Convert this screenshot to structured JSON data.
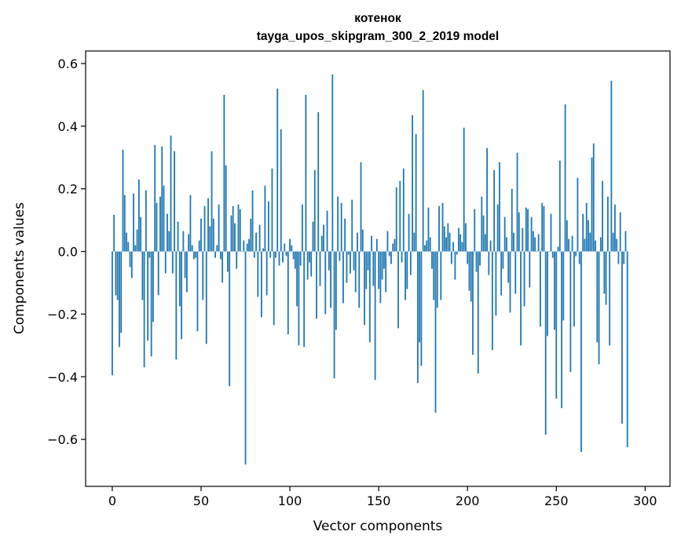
{
  "chart_data": {
    "type": "bar",
    "title": "котенок",
    "subtitle": "tayga_upos_skipgram_300_2_2019 model",
    "xlabel": "Vector components",
    "ylabel": "Components values",
    "xlim": [
      -15,
      314
    ],
    "ylim": [
      -0.75,
      0.64
    ],
    "xticks": [
      0,
      50,
      100,
      150,
      200,
      250,
      300
    ],
    "xtick_labels": [
      "0",
      "50",
      "100",
      "150",
      "200",
      "250",
      "300"
    ],
    "yticks": [
      -0.6,
      -0.4,
      -0.2,
      0.0,
      0.2,
      0.4,
      0.6
    ],
    "ytick_labels": [
      "−0.6",
      "−0.4",
      "−0.2",
      "0.0",
      "0.2",
      "0.4",
      "0.6"
    ],
    "grid": false,
    "bar_color": "#1f77b4",
    "x": "0..299",
    "values": [
      -0.395,
      0.117,
      -0.14,
      -0.155,
      -0.305,
      -0.26,
      0.325,
      0.18,
      0.06,
      0.03,
      -0.05,
      -0.085,
      0.185,
      0.02,
      0.07,
      0.23,
      0.11,
      -0.155,
      -0.37,
      0.195,
      -0.285,
      -0.02,
      -0.335,
      -0.225,
      0.34,
      0.155,
      -0.14,
      0.175,
      0.335,
      0.21,
      -0.07,
      0.12,
      0.065,
      0.37,
      -0.07,
      0.32,
      -0.345,
      0.095,
      -0.175,
      -0.28,
      0.065,
      -0.085,
      -0.13,
      0.055,
      0.18,
      0.02,
      -0.025,
      -0.02,
      -0.255,
      0.035,
      0.105,
      -0.155,
      0.145,
      -0.295,
      0.17,
      0.08,
      0.32,
      0.105,
      -0.02,
      0.02,
      0.15,
      -0.025,
      -0.1,
      0.5,
      0.275,
      -0.065,
      -0.43,
      0.115,
      0.145,
      0.09,
      -0.055,
      0.15,
      0.135,
      0.0,
      0.035,
      -0.68,
      0.025,
      0.04,
      0.105,
      0.195,
      -0.02,
      0.06,
      -0.145,
      0.085,
      -0.21,
      0.01,
      0.21,
      -0.14,
      0.16,
      -0.02,
      0.265,
      -0.235,
      -0.02,
      0.52,
      -0.045,
      0.39,
      -0.035,
      0.025,
      -0.015,
      -0.265,
      0.04,
      0.02,
      -0.025,
      -0.055,
      -0.175,
      -0.3,
      -0.045,
      0.15,
      -0.305,
      0.5,
      -0.09,
      -0.035,
      -0.08,
      0.095,
      0.26,
      -0.215,
      0.445,
      -0.11,
      0.05,
      0.085,
      -0.2,
      0.13,
      -0.06,
      -0.18,
      0.565,
      -0.405,
      -0.25,
      0.175,
      -0.03,
      0.155,
      -0.165,
      0.105,
      -0.1,
      -0.01,
      -0.07,
      0.165,
      -0.06,
      -0.13,
      0.06,
      -0.18,
      0.285,
      0.07,
      -0.235,
      -0.12,
      -0.06,
      -0.29,
      0.05,
      -0.11,
      -0.41,
      0.04,
      -0.12,
      -0.165,
      -0.09,
      -0.055,
      -0.13,
      0.065,
      -0.015,
      -0.04,
      0.025,
      0.04,
      0.205,
      -0.245,
      0.225,
      -0.035,
      0.265,
      -0.155,
      -0.12,
      0.12,
      -0.075,
      0.435,
      0.06,
      0.375,
      -0.42,
      -0.29,
      -0.365,
      0.515,
      0.02,
      0.035,
      0.14,
      0.045,
      -0.055,
      -0.155,
      -0.515,
      -0.18,
      0.145,
      -0.155,
      0.155,
      0.08,
      0.045,
      0.09,
      0.06,
      -0.04,
      0.03,
      -0.09,
      -0.01,
      0.075,
      0.055,
      0.03,
      0.395,
      0.09,
      -0.04,
      -0.125,
      -0.16,
      -0.33,
      0.135,
      -0.065,
      -0.39,
      -0.045,
      0.175,
      0.115,
      0.055,
      0.33,
      -0.075,
      0.035,
      -0.315,
      0.26,
      -0.205,
      0.15,
      0.285,
      -0.14,
      -0.055,
      0.11,
      0.045,
      -0.1,
      -0.195,
      0.2,
      0.06,
      -0.135,
      0.315,
      0.125,
      -0.3,
      0.075,
      -0.175,
      0.14,
      0.135,
      -0.115,
      0.11,
      0.065,
      0.045,
      0.0,
      0.055,
      -0.24,
      0.155,
      0.145,
      -0.585,
      -0.27,
      0.0,
      0.12,
      -0.02,
      -0.25,
      -0.47,
      0.015,
      0.29,
      -0.5,
      -0.22,
      0.47,
      0.1,
      0.04,
      -0.385,
      0.05,
      -0.24,
      -0.015,
      0.235,
      -0.04,
      -0.64,
      0.12,
      0.04,
      0.155,
      0.1,
      0.06,
      0.3,
      0.345,
      0.035,
      -0.29,
      -0.36,
      0.045,
      0.225,
      -0.135,
      -0.17,
      0.175,
      -0.3,
      0.545,
      0.06,
      0.15,
      0.04,
      -0.04,
      0.125,
      -0.55,
      -0.04,
      0.065,
      -0.625
    ]
  }
}
